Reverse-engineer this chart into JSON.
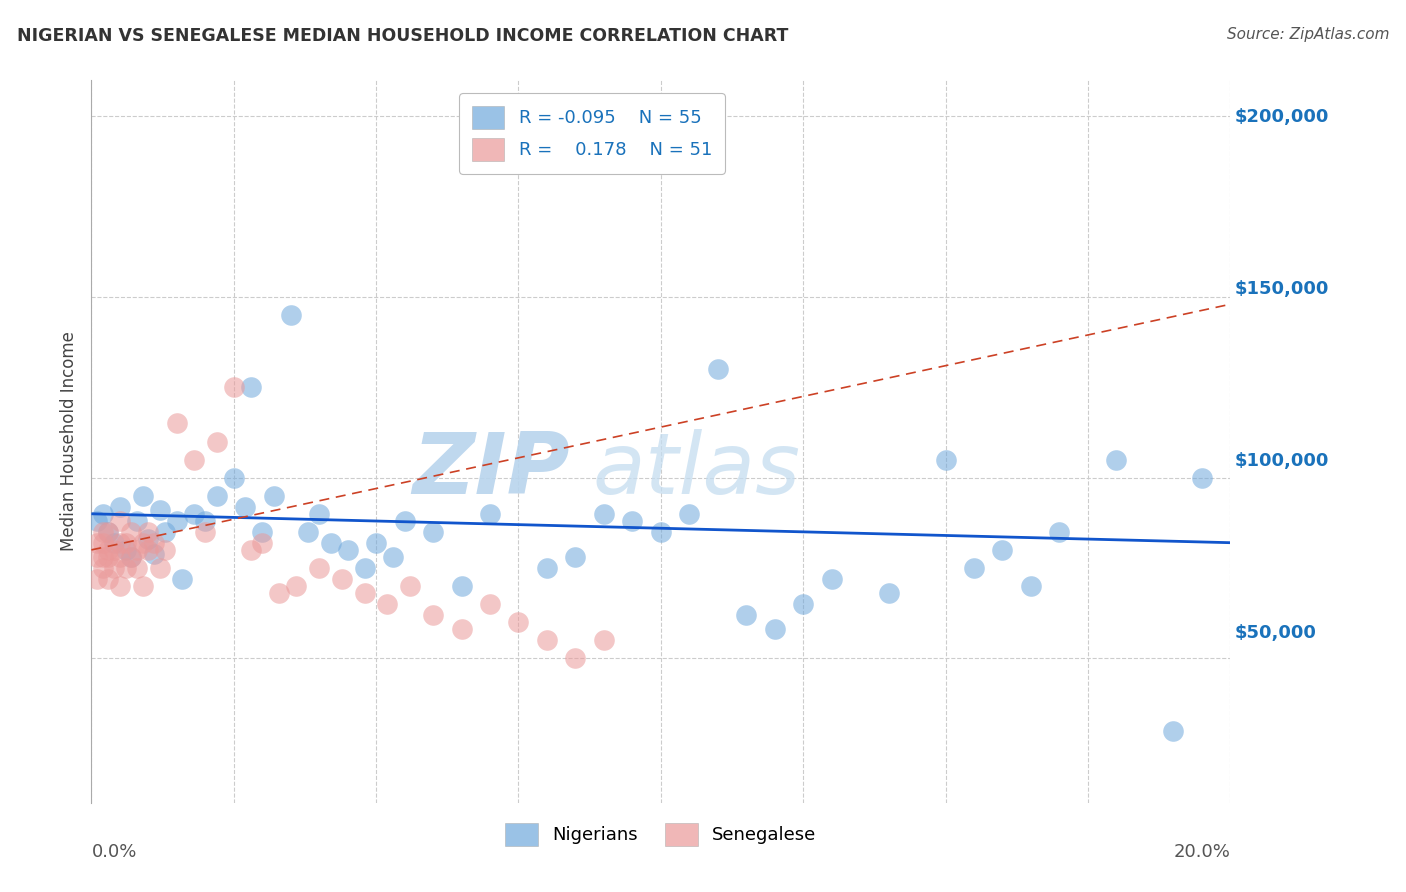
{
  "title": "NIGERIAN VS SENEGALESE MEDIAN HOUSEHOLD INCOME CORRELATION CHART",
  "source": "Source: ZipAtlas.com",
  "ylabel": "Median Household Income",
  "yticks": [
    0,
    50000,
    100000,
    150000,
    200000
  ],
  "ytick_labels": [
    "",
    "$50,000",
    "$100,000",
    "$150,000",
    "$200,000"
  ],
  "xlim": [
    0.0,
    0.2
  ],
  "ylim": [
    10000,
    210000
  ],
  "legend_r_nigerian": "-0.095",
  "legend_n_nigerian": "55",
  "legend_r_senegalese": "0.178",
  "legend_n_senegalese": "51",
  "nigerian_color": "#6fa8dc",
  "senegalese_color": "#ea9999",
  "nigerian_line_color": "#1155cc",
  "senegalese_line_color": "#cc4125",
  "watermark_zip": "ZIP",
  "watermark_atlas": "atlas",
  "nigerian_x": [
    0.001,
    0.002,
    0.003,
    0.004,
    0.005,
    0.006,
    0.007,
    0.008,
    0.009,
    0.01,
    0.011,
    0.012,
    0.013,
    0.015,
    0.016,
    0.018,
    0.02,
    0.022,
    0.025,
    0.027,
    0.028,
    0.03,
    0.032,
    0.035,
    0.038,
    0.04,
    0.042,
    0.045,
    0.048,
    0.05,
    0.053,
    0.055,
    0.06,
    0.065,
    0.07,
    0.08,
    0.085,
    0.09,
    0.095,
    0.1,
    0.105,
    0.11,
    0.115,
    0.12,
    0.125,
    0.13,
    0.14,
    0.15,
    0.155,
    0.16,
    0.165,
    0.17,
    0.18,
    0.19,
    0.195
  ],
  "nigerian_y": [
    88000,
    90000,
    85000,
    82000,
    92000,
    80000,
    78000,
    88000,
    95000,
    83000,
    79000,
    91000,
    85000,
    88000,
    72000,
    90000,
    88000,
    95000,
    100000,
    92000,
    125000,
    85000,
    95000,
    145000,
    85000,
    90000,
    82000,
    80000,
    75000,
    82000,
    78000,
    88000,
    85000,
    70000,
    90000,
    75000,
    78000,
    90000,
    88000,
    85000,
    90000,
    130000,
    62000,
    58000,
    65000,
    72000,
    68000,
    105000,
    75000,
    80000,
    70000,
    85000,
    105000,
    30000,
    100000
  ],
  "senegalese_x": [
    0.001,
    0.001,
    0.001,
    0.002,
    0.002,
    0.002,
    0.002,
    0.003,
    0.003,
    0.003,
    0.003,
    0.004,
    0.004,
    0.005,
    0.005,
    0.005,
    0.005,
    0.006,
    0.006,
    0.007,
    0.007,
    0.008,
    0.008,
    0.009,
    0.009,
    0.01,
    0.01,
    0.011,
    0.012,
    0.013,
    0.015,
    0.018,
    0.02,
    0.022,
    0.025,
    0.028,
    0.03,
    0.033,
    0.036,
    0.04,
    0.044,
    0.048,
    0.052,
    0.056,
    0.06,
    0.065,
    0.07,
    0.075,
    0.08,
    0.085,
    0.09
  ],
  "senegalese_y": [
    82000,
    78000,
    72000,
    85000,
    78000,
    82000,
    75000,
    80000,
    85000,
    78000,
    72000,
    80000,
    75000,
    82000,
    78000,
    70000,
    88000,
    82000,
    75000,
    85000,
    78000,
    80000,
    75000,
    70000,
    82000,
    85000,
    80000,
    82000,
    75000,
    80000,
    115000,
    105000,
    85000,
    110000,
    125000,
    80000,
    82000,
    68000,
    70000,
    75000,
    72000,
    68000,
    65000,
    70000,
    62000,
    58000,
    65000,
    60000,
    55000,
    50000,
    55000
  ],
  "nigerian_line_y0": 90000,
  "nigerian_line_y1": 82000,
  "senegalese_line_y0": 80000,
  "senegalese_line_y1": 148000
}
